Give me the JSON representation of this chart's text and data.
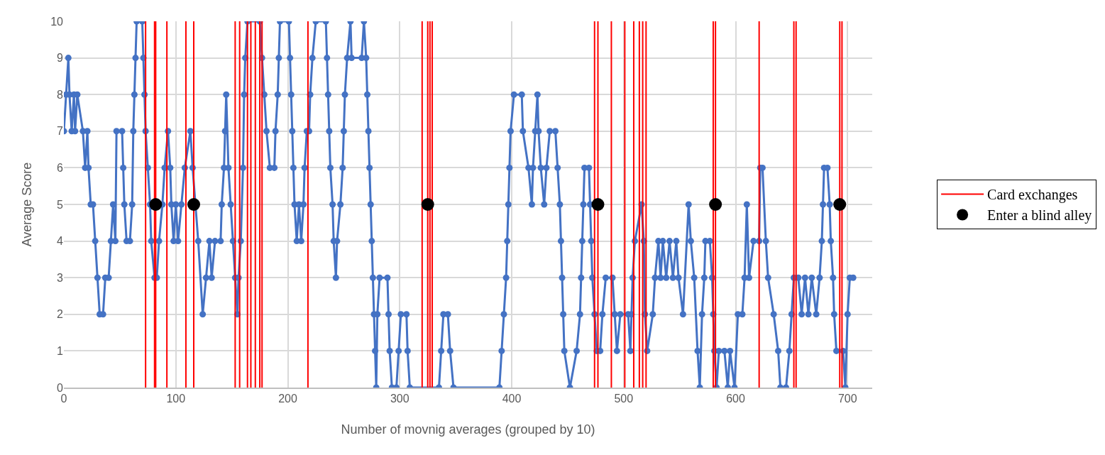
{
  "chart_data": {
    "type": "line",
    "xlabel": "Number of movnig averages (grouped by 10)",
    "ylabel": "Average Score",
    "xlim": [
      0,
      722
    ],
    "xticks": [
      0,
      100,
      200,
      300,
      400,
      500,
      600,
      700
    ],
    "ylim": [
      0,
      10
    ],
    "yticks": [
      0,
      1,
      2,
      3,
      4,
      5,
      6,
      7,
      8,
      9,
      10
    ],
    "grid": true,
    "legend": "right",
    "series": [
      {
        "color": "#4472c4",
        "marker": "circle",
        "x": [
          0,
          2,
          4,
          5,
          7,
          9,
          10,
          12,
          17,
          19,
          21,
          22,
          24,
          26,
          28,
          30,
          32,
          35,
          37,
          40,
          42,
          44,
          46,
          47,
          52,
          53,
          54,
          56,
          59,
          61,
          62,
          63,
          64,
          65,
          70,
          71,
          72,
          73,
          75,
          77,
          78,
          81,
          83,
          85,
          88,
          90,
          93,
          95,
          96,
          98,
          100,
          102,
          105,
          108,
          113,
          115,
          120,
          124,
          127,
          130,
          132,
          135,
          140,
          141,
          143,
          144,
          145,
          147,
          149,
          151,
          153,
          155,
          156,
          158,
          160,
          161,
          162,
          164,
          175,
          177,
          179,
          181,
          184,
          188,
          189,
          191,
          192,
          193,
          201,
          202,
          203,
          204,
          205,
          206,
          208,
          210,
          212,
          214,
          215,
          217,
          219,
          220,
          222,
          225,
          234,
          235,
          236,
          237,
          238,
          240,
          241,
          243,
          244,
          247,
          249,
          250,
          251,
          253,
          256,
          257,
          266,
          268,
          270,
          271,
          272,
          273,
          274,
          275,
          276,
          277,
          278,
          279,
          280,
          282,
          289,
          290,
          291,
          293,
          297,
          299,
          301,
          306,
          307,
          309,
          335,
          337,
          339,
          343,
          345,
          348,
          389,
          391,
          393,
          395,
          396,
          397,
          398,
          399,
          402,
          409,
          410,
          415,
          418,
          419,
          421,
          423,
          424,
          426,
          429,
          431,
          434,
          439,
          441,
          443,
          444,
          445,
          446,
          447,
          452,
          458,
          461,
          462,
          463,
          464,
          465,
          469,
          470,
          471,
          472,
          474,
          476,
          479,
          481,
          484,
          490,
          492,
          494,
          497,
          504,
          506,
          507,
          508,
          510,
          516,
          518,
          519,
          521,
          526,
          528,
          531,
          533,
          535,
          538,
          541,
          544,
          547,
          549,
          553,
          558,
          560,
          563,
          566,
          568,
          570,
          572,
          573,
          577,
          579,
          580,
          581,
          583,
          585,
          590,
          593,
          595,
          599,
          602,
          606,
          608,
          610,
          612,
          616,
          621,
          622,
          624,
          627,
          629,
          634,
          638,
          640,
          645,
          648,
          650,
          652,
          656,
          659,
          662,
          665,
          668,
          672,
          675,
          677,
          678,
          679,
          682,
          684,
          685,
          687,
          688,
          690,
          696,
          698,
          700,
          702,
          705
        ],
        "values": [
          7,
          8,
          9,
          8,
          7,
          8,
          7,
          8,
          7,
          6,
          7,
          6,
          5,
          5,
          4,
          3,
          2,
          2,
          3,
          3,
          4,
          5,
          4,
          7,
          7,
          6,
          5,
          4,
          4,
          5,
          7,
          8,
          9,
          10,
          10,
          9,
          8,
          7,
          6,
          5,
          4,
          3,
          3,
          4,
          5,
          6,
          7,
          6,
          5,
          4,
          5,
          4,
          5,
          6,
          7,
          6,
          4,
          2,
          3,
          4,
          3,
          4,
          4,
          5,
          6,
          7,
          8,
          6,
          5,
          4,
          3,
          2,
          3,
          4,
          6,
          8,
          9,
          10,
          10,
          9,
          8,
          7,
          6,
          6,
          7,
          8,
          9,
          10,
          10,
          9,
          8,
          7,
          6,
          5,
          4,
          5,
          4,
          5,
          6,
          7,
          7,
          8,
          9,
          10,
          10,
          9,
          8,
          7,
          6,
          5,
          4,
          3,
          4,
          5,
          6,
          7,
          8,
          9,
          10,
          9,
          9,
          10,
          9,
          8,
          7,
          6,
          5,
          4,
          3,
          2,
          1,
          0,
          2,
          3,
          3,
          2,
          1,
          0,
          0,
          1,
          2,
          2,
          1,
          0,
          0,
          1,
          2,
          2,
          1,
          0,
          0,
          1,
          2,
          3,
          4,
          5,
          6,
          7,
          8,
          8,
          7,
          6,
          5,
          6,
          7,
          8,
          7,
          6,
          5,
          6,
          7,
          7,
          6,
          5,
          4,
          3,
          2,
          1,
          0,
          1,
          2,
          3,
          4,
          5,
          6,
          6,
          5,
          4,
          3,
          2,
          1,
          1,
          2,
          3,
          3,
          2,
          1,
          2,
          2,
          1,
          2,
          3,
          4,
          5,
          4,
          2,
          1,
          2,
          3,
          4,
          3,
          4,
          3,
          4,
          3,
          4,
          3,
          2,
          5,
          4,
          3,
          1,
          0,
          2,
          3,
          4,
          4,
          3,
          2,
          1,
          0,
          1,
          1,
          0,
          1,
          0,
          2,
          2,
          3,
          5,
          3,
          4,
          4,
          6,
          6,
          4,
          3,
          2,
          1,
          0,
          0,
          1,
          2,
          3,
          3,
          2,
          3,
          2,
          3,
          2,
          3,
          4,
          5,
          6,
          6,
          5,
          4,
          3,
          2,
          1,
          1,
          0,
          2,
          3,
          3
        ]
      },
      {
        "type": "line",
        "name": "Card exchanges",
        "color": "#ff0000",
        "marker": "none",
        "x": [
          73,
          73,
          null,
          81,
          81,
          null,
          82,
          82,
          null,
          92,
          92,
          null,
          109,
          109,
          null,
          116,
          116,
          null,
          153,
          153,
          null,
          157,
          157,
          null,
          164,
          164,
          null,
          167,
          167,
          null,
          171,
          171,
          null,
          175,
          175,
          null,
          177,
          177,
          null,
          218,
          218,
          null,
          320,
          320,
          null,
          325,
          325,
          null,
          327,
          327,
          null,
          329,
          329,
          null,
          474,
          474,
          null,
          477,
          477,
          null,
          489,
          489,
          null,
          501,
          501,
          null,
          509,
          509,
          null,
          514,
          514,
          null,
          517,
          517,
          null,
          520,
          520,
          null,
          580,
          580,
          null,
          582,
          582,
          null,
          621,
          621,
          null,
          652,
          652,
          null,
          654,
          654,
          null,
          693,
          693,
          null,
          695,
          695,
          null
        ],
        "values": [
          0,
          10,
          null,
          0,
          10,
          null,
          0,
          10,
          null,
          0,
          10,
          null,
          0,
          10,
          null,
          0,
          10,
          null,
          0,
          10,
          null,
          0,
          10,
          null,
          0,
          10,
          null,
          0,
          10,
          null,
          0,
          10,
          null,
          0,
          10,
          null,
          0,
          10,
          null,
          0,
          10,
          null,
          0,
          10,
          null,
          0,
          10,
          null,
          0,
          10,
          null,
          0,
          10,
          null,
          0,
          10,
          null,
          0,
          10,
          null,
          0,
          10,
          null,
          0,
          10,
          null,
          0,
          10,
          null,
          0,
          10,
          null,
          0,
          10,
          null,
          0,
          10,
          null,
          0,
          10,
          null,
          0,
          10,
          null,
          0,
          10,
          null,
          0,
          10,
          null,
          0,
          10,
          null,
          0,
          10,
          null,
          0,
          10,
          null
        ]
      },
      {
        "type": "scatter",
        "name": "Enter a blind alley",
        "color": "#000000",
        "marker": "circle",
        "x": [
          82,
          116,
          325,
          477,
          582,
          693
        ],
        "values": [
          5,
          5,
          5,
          5,
          5,
          5
        ]
      }
    ]
  }
}
